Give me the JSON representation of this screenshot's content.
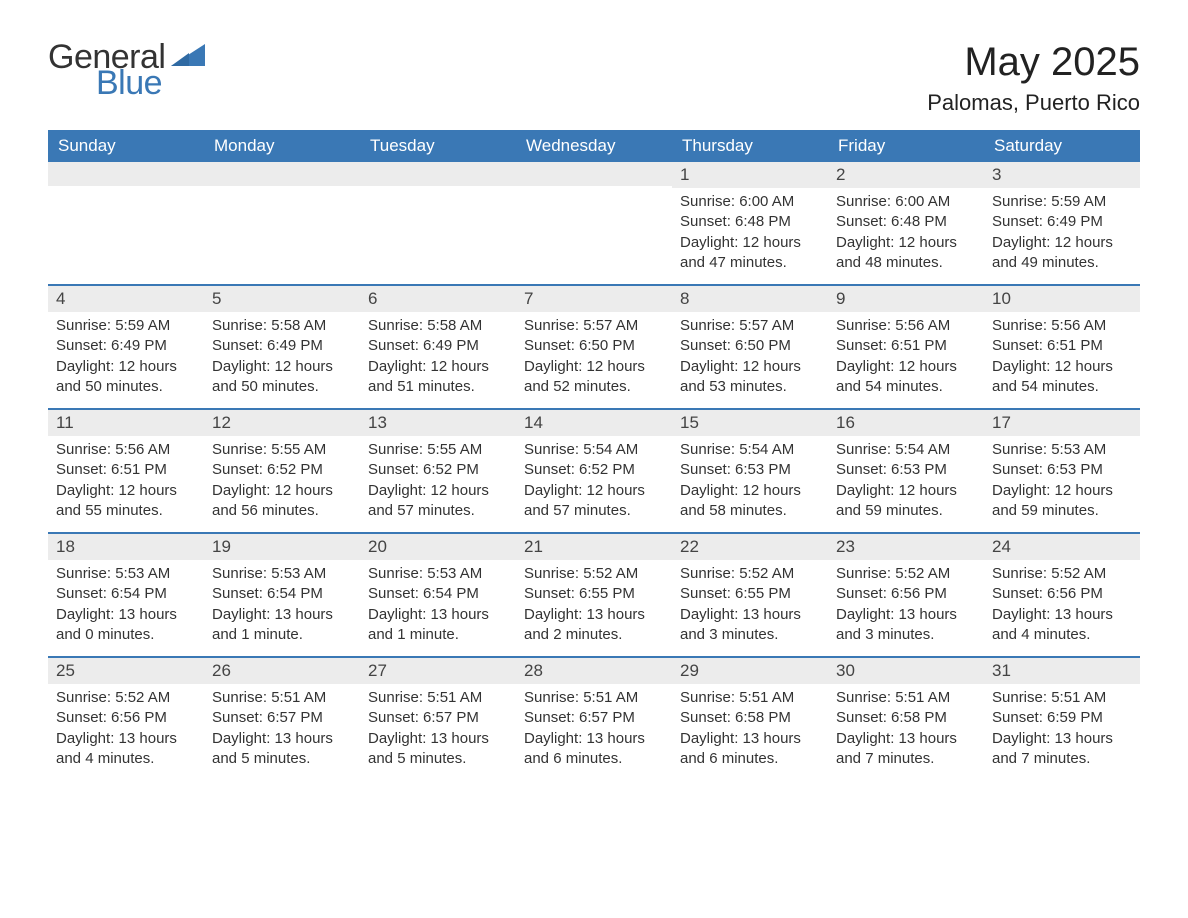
{
  "brand": {
    "general": "General",
    "blue": "Blue",
    "logo_color": "#3a78b5",
    "text_color": "#333333"
  },
  "header": {
    "title": "May 2025",
    "location": "Palomas, Puerto Rico"
  },
  "style": {
    "header_bg": "#3a78b5",
    "header_text": "#ffffff",
    "daynum_bg": "#ececec",
    "row_border": "#3a78b5",
    "body_text": "#333333",
    "page_bg": "#ffffff",
    "title_fontsize": 40,
    "location_fontsize": 22,
    "weekday_fontsize": 17,
    "body_fontsize": 15
  },
  "weekdays": [
    "Sunday",
    "Monday",
    "Tuesday",
    "Wednesday",
    "Thursday",
    "Friday",
    "Saturday"
  ],
  "weeks": [
    [
      {
        "empty": true
      },
      {
        "empty": true
      },
      {
        "empty": true
      },
      {
        "empty": true
      },
      {
        "day": "1",
        "sunrise": "Sunrise: 6:00 AM",
        "sunset": "Sunset: 6:48 PM",
        "daylight": "Daylight: 12 hours and 47 minutes."
      },
      {
        "day": "2",
        "sunrise": "Sunrise: 6:00 AM",
        "sunset": "Sunset: 6:48 PM",
        "daylight": "Daylight: 12 hours and 48 minutes."
      },
      {
        "day": "3",
        "sunrise": "Sunrise: 5:59 AM",
        "sunset": "Sunset: 6:49 PM",
        "daylight": "Daylight: 12 hours and 49 minutes."
      }
    ],
    [
      {
        "day": "4",
        "sunrise": "Sunrise: 5:59 AM",
        "sunset": "Sunset: 6:49 PM",
        "daylight": "Daylight: 12 hours and 50 minutes."
      },
      {
        "day": "5",
        "sunrise": "Sunrise: 5:58 AM",
        "sunset": "Sunset: 6:49 PM",
        "daylight": "Daylight: 12 hours and 50 minutes."
      },
      {
        "day": "6",
        "sunrise": "Sunrise: 5:58 AM",
        "sunset": "Sunset: 6:49 PM",
        "daylight": "Daylight: 12 hours and 51 minutes."
      },
      {
        "day": "7",
        "sunrise": "Sunrise: 5:57 AM",
        "sunset": "Sunset: 6:50 PM",
        "daylight": "Daylight: 12 hours and 52 minutes."
      },
      {
        "day": "8",
        "sunrise": "Sunrise: 5:57 AM",
        "sunset": "Sunset: 6:50 PM",
        "daylight": "Daylight: 12 hours and 53 minutes."
      },
      {
        "day": "9",
        "sunrise": "Sunrise: 5:56 AM",
        "sunset": "Sunset: 6:51 PM",
        "daylight": "Daylight: 12 hours and 54 minutes."
      },
      {
        "day": "10",
        "sunrise": "Sunrise: 5:56 AM",
        "sunset": "Sunset: 6:51 PM",
        "daylight": "Daylight: 12 hours and 54 minutes."
      }
    ],
    [
      {
        "day": "11",
        "sunrise": "Sunrise: 5:56 AM",
        "sunset": "Sunset: 6:51 PM",
        "daylight": "Daylight: 12 hours and 55 minutes."
      },
      {
        "day": "12",
        "sunrise": "Sunrise: 5:55 AM",
        "sunset": "Sunset: 6:52 PM",
        "daylight": "Daylight: 12 hours and 56 minutes."
      },
      {
        "day": "13",
        "sunrise": "Sunrise: 5:55 AM",
        "sunset": "Sunset: 6:52 PM",
        "daylight": "Daylight: 12 hours and 57 minutes."
      },
      {
        "day": "14",
        "sunrise": "Sunrise: 5:54 AM",
        "sunset": "Sunset: 6:52 PM",
        "daylight": "Daylight: 12 hours and 57 minutes."
      },
      {
        "day": "15",
        "sunrise": "Sunrise: 5:54 AM",
        "sunset": "Sunset: 6:53 PM",
        "daylight": "Daylight: 12 hours and 58 minutes."
      },
      {
        "day": "16",
        "sunrise": "Sunrise: 5:54 AM",
        "sunset": "Sunset: 6:53 PM",
        "daylight": "Daylight: 12 hours and 59 minutes."
      },
      {
        "day": "17",
        "sunrise": "Sunrise: 5:53 AM",
        "sunset": "Sunset: 6:53 PM",
        "daylight": "Daylight: 12 hours and 59 minutes."
      }
    ],
    [
      {
        "day": "18",
        "sunrise": "Sunrise: 5:53 AM",
        "sunset": "Sunset: 6:54 PM",
        "daylight": "Daylight: 13 hours and 0 minutes."
      },
      {
        "day": "19",
        "sunrise": "Sunrise: 5:53 AM",
        "sunset": "Sunset: 6:54 PM",
        "daylight": "Daylight: 13 hours and 1 minute."
      },
      {
        "day": "20",
        "sunrise": "Sunrise: 5:53 AM",
        "sunset": "Sunset: 6:54 PM",
        "daylight": "Daylight: 13 hours and 1 minute."
      },
      {
        "day": "21",
        "sunrise": "Sunrise: 5:52 AM",
        "sunset": "Sunset: 6:55 PM",
        "daylight": "Daylight: 13 hours and 2 minutes."
      },
      {
        "day": "22",
        "sunrise": "Sunrise: 5:52 AM",
        "sunset": "Sunset: 6:55 PM",
        "daylight": "Daylight: 13 hours and 3 minutes."
      },
      {
        "day": "23",
        "sunrise": "Sunrise: 5:52 AM",
        "sunset": "Sunset: 6:56 PM",
        "daylight": "Daylight: 13 hours and 3 minutes."
      },
      {
        "day": "24",
        "sunrise": "Sunrise: 5:52 AM",
        "sunset": "Sunset: 6:56 PM",
        "daylight": "Daylight: 13 hours and 4 minutes."
      }
    ],
    [
      {
        "day": "25",
        "sunrise": "Sunrise: 5:52 AM",
        "sunset": "Sunset: 6:56 PM",
        "daylight": "Daylight: 13 hours and 4 minutes."
      },
      {
        "day": "26",
        "sunrise": "Sunrise: 5:51 AM",
        "sunset": "Sunset: 6:57 PM",
        "daylight": "Daylight: 13 hours and 5 minutes."
      },
      {
        "day": "27",
        "sunrise": "Sunrise: 5:51 AM",
        "sunset": "Sunset: 6:57 PM",
        "daylight": "Daylight: 13 hours and 5 minutes."
      },
      {
        "day": "28",
        "sunrise": "Sunrise: 5:51 AM",
        "sunset": "Sunset: 6:57 PM",
        "daylight": "Daylight: 13 hours and 6 minutes."
      },
      {
        "day": "29",
        "sunrise": "Sunrise: 5:51 AM",
        "sunset": "Sunset: 6:58 PM",
        "daylight": "Daylight: 13 hours and 6 minutes."
      },
      {
        "day": "30",
        "sunrise": "Sunrise: 5:51 AM",
        "sunset": "Sunset: 6:58 PM",
        "daylight": "Daylight: 13 hours and 7 minutes."
      },
      {
        "day": "31",
        "sunrise": "Sunrise: 5:51 AM",
        "sunset": "Sunset: 6:59 PM",
        "daylight": "Daylight: 13 hours and 7 minutes."
      }
    ]
  ]
}
